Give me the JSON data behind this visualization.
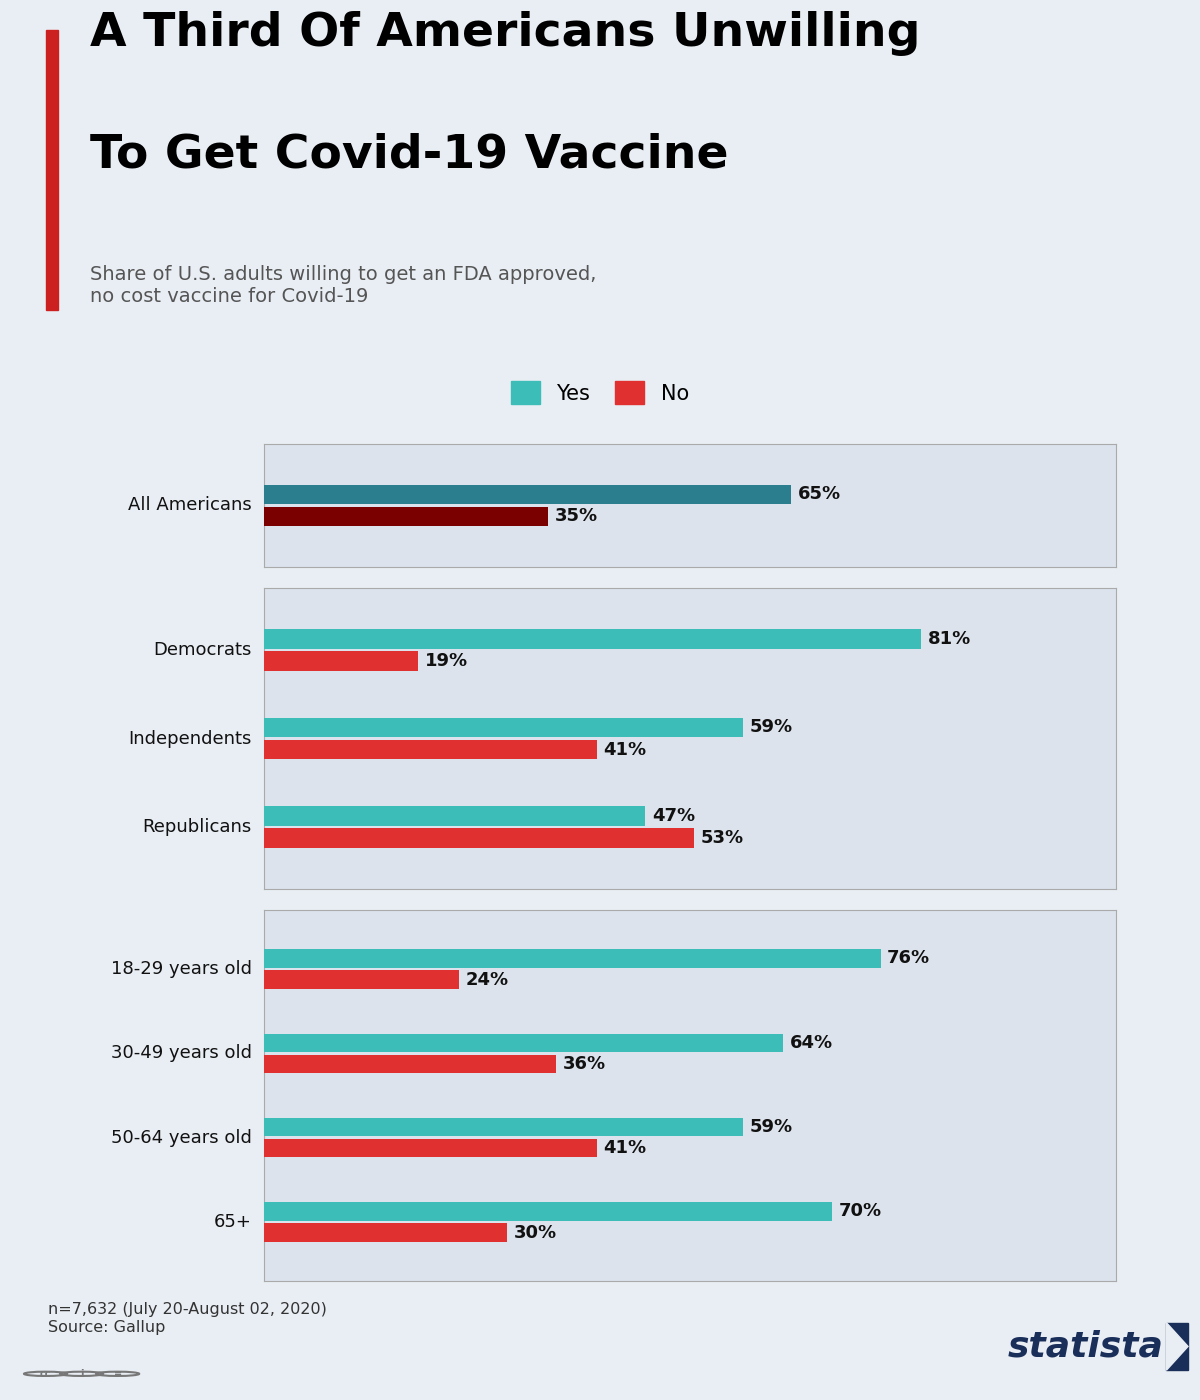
{
  "title_line1": "A Third Of Americans Unwilling",
  "title_line2": "To Get Covid-19 Vaccine",
  "subtitle": "Share of U.S. adults willing to get an FDA approved,\nno cost vaccine for Covid-19",
  "footnote": "n=7,632 (July 20-August 02, 2020)\nSource: Gallup",
  "yes_color_all": "#2b7e8e",
  "yes_color": "#3dbdb7",
  "no_color_all": "#7a0000",
  "no_color_political": "#e03030",
  "no_color_age": "#e03030",
  "bg_color": "#e9eef4",
  "box_bg_color": "#dce3ec",
  "box_border_color": "#aaaaaa",
  "title_bar_color": "#cc2020",
  "label_color": "#111111",
  "subtitle_color": "#555555",
  "footnote_color": "#333333",
  "statista_color": "#1a2e5a",
  "groups": {
    "all": {
      "categories": [
        "All Americans"
      ],
      "yes_values": [
        65
      ],
      "no_values": [
        35
      ]
    },
    "political": {
      "categories": [
        "Democrats",
        "Independents",
        "Republicans"
      ],
      "yes_values": [
        81,
        59,
        47
      ],
      "no_values": [
        19,
        41,
        53
      ]
    },
    "age": {
      "categories": [
        "18-29 years old",
        "30-49 years old",
        "50-64 years old",
        "65+"
      ],
      "yes_values": [
        76,
        64,
        59,
        70
      ],
      "no_values": [
        24,
        36,
        41,
        30
      ]
    }
  }
}
